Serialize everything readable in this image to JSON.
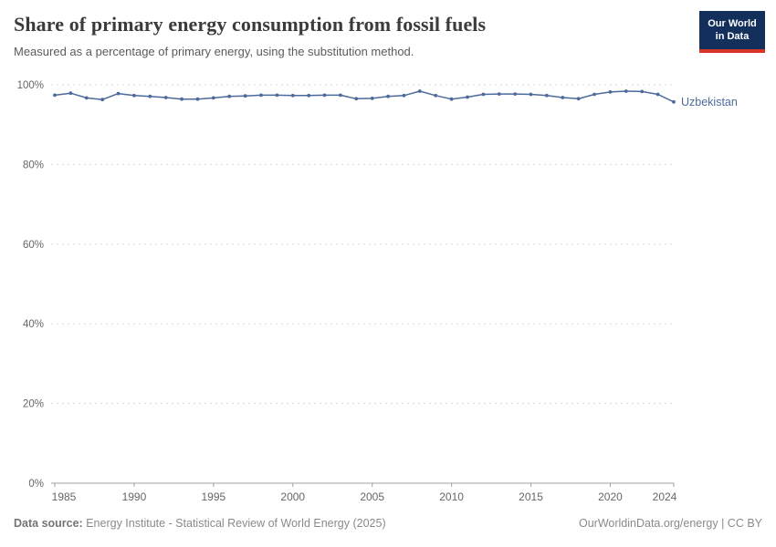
{
  "header": {
    "title": "Share of primary energy consumption from fossil fuels",
    "subtitle": "Measured as a percentage of primary energy, using the substitution method."
  },
  "logo": {
    "line1": "Our World",
    "line2": "in Data"
  },
  "footer": {
    "source_label": "Data source:",
    "source_text": "Energy Institute - Statistical Review of World Energy (2025)",
    "right_text": "OurWorldinData.org/energy | CC BY"
  },
  "colors": {
    "accent_line": "#4C6A9C",
    "logo_bg": "#12305b",
    "logo_red": "#d8352a",
    "grid": "#dadada",
    "axis": "#a0a0a0",
    "tick_text": "#666666",
    "title_text": "#3b3b3b",
    "subtitle_text": "#5b5b5b",
    "footer_text": "#8a8a8a"
  },
  "chart_data": {
    "type": "line",
    "title": "Share of primary energy consumption from fossil fuels",
    "subtitle": "Measured as a percentage of primary energy, using the substitution method.",
    "xlabel": "",
    "ylabel": "",
    "xlim": [
      1985,
      2024
    ],
    "ylim": [
      0,
      100
    ],
    "xticks": [
      1985,
      1990,
      1995,
      2000,
      2005,
      2010,
      2015,
      2020,
      2024
    ],
    "yticks": [
      0,
      20,
      40,
      60,
      80,
      100
    ],
    "ytick_suffix": "%",
    "grid": "horizontal-dashed",
    "legend_position": "end-of-line-label",
    "series": [
      {
        "name": "Uzbekistan",
        "x": [
          1985,
          1986,
          1987,
          1988,
          1989,
          1990,
          1991,
          1992,
          1993,
          1994,
          1995,
          1996,
          1997,
          1998,
          1999,
          2000,
          2001,
          2002,
          2003,
          2004,
          2005,
          2006,
          2007,
          2008,
          2009,
          2010,
          2011,
          2012,
          2013,
          2014,
          2015,
          2016,
          2017,
          2018,
          2019,
          2020,
          2021,
          2022,
          2023,
          2024
        ],
        "values": [
          97.4,
          97.9,
          96.7,
          96.3,
          97.8,
          97.3,
          97.1,
          96.8,
          96.4,
          96.4,
          96.7,
          97.1,
          97.2,
          97.4,
          97.4,
          97.3,
          97.3,
          97.4,
          97.4,
          96.5,
          96.6,
          97.1,
          97.3,
          98.4,
          97.3,
          96.4,
          96.9,
          97.6,
          97.7,
          97.7,
          97.6,
          97.3,
          96.8,
          96.5,
          97.6,
          98.2,
          98.4,
          98.3,
          97.6,
          95.7
        ]
      }
    ]
  }
}
